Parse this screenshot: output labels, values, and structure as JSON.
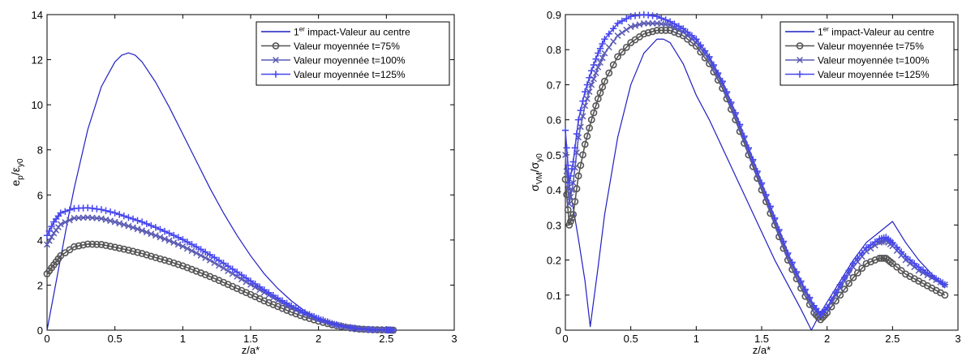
{
  "chart_data": [
    {
      "type": "line",
      "xlabel": "z/a*",
      "ylabel": {
        "base": "e",
        "sub1": "p",
        "sep": "/ε",
        "sub2": "y0"
      },
      "xlim": [
        0,
        3
      ],
      "ylim": [
        0,
        14
      ],
      "xticks": [
        0,
        0.5,
        1,
        1.5,
        2,
        2.5,
        3
      ],
      "xtick_labels": [
        "0",
        "0.5",
        "1",
        "1.5",
        "2",
        "2.5",
        "3"
      ],
      "yticks": [
        0,
        2,
        4,
        6,
        8,
        10,
        12,
        14
      ],
      "ytick_labels": [
        "0",
        "2",
        "4",
        "6",
        "8",
        "10",
        "12",
        "14"
      ],
      "grid": false,
      "legend_position": "top-right",
      "legend": [
        {
          "pre": "1",
          "sup": "er",
          "post": " impact-Valeur au centre"
        },
        {
          "pre": "Valeur moyennée t=75%",
          "sup": "",
          "post": ""
        },
        {
          "pre": "Valeur moyennée t=100%",
          "sup": "",
          "post": ""
        },
        {
          "pre": "Valeur moyennée t=125%",
          "sup": "",
          "post": ""
        }
      ],
      "series": [
        {
          "color": "#1f1fc4",
          "marker": "none",
          "x": [
            0,
            0.05,
            0.1,
            0.15,
            0.2,
            0.3,
            0.4,
            0.5,
            0.55,
            0.6,
            0.65,
            0.7,
            0.8,
            0.9,
            1.0,
            1.1,
            1.2,
            1.3,
            1.4,
            1.5,
            1.6,
            1.7,
            1.8,
            1.9,
            2.0,
            2.1,
            2.2,
            2.3,
            2.4,
            2.5,
            2.55
          ],
          "y": [
            0,
            1.6,
            3.2,
            4.8,
            6.3,
            8.9,
            10.8,
            11.9,
            12.2,
            12.3,
            12.2,
            11.9,
            11.0,
            9.9,
            8.7,
            7.5,
            6.3,
            5.2,
            4.2,
            3.3,
            2.5,
            1.85,
            1.3,
            0.85,
            0.5,
            0.27,
            0.12,
            0.04,
            0.01,
            0,
            0
          ]
        },
        {
          "color": "#555555",
          "marker": "circle",
          "x": [
            0,
            0.05,
            0.1,
            0.2,
            0.3,
            0.4,
            0.5,
            0.6,
            0.7,
            0.8,
            0.9,
            1.0,
            1.1,
            1.2,
            1.3,
            1.4,
            1.5,
            1.6,
            1.7,
            1.8,
            1.9,
            2.0,
            2.1,
            2.2,
            2.3,
            2.4,
            2.5,
            2.55
          ],
          "y": [
            2.5,
            2.9,
            3.3,
            3.7,
            3.82,
            3.8,
            3.68,
            3.55,
            3.4,
            3.22,
            3.05,
            2.85,
            2.62,
            2.38,
            2.12,
            1.85,
            1.58,
            1.3,
            1.05,
            0.8,
            0.58,
            0.4,
            0.24,
            0.12,
            0.05,
            0.02,
            0.01,
            0
          ]
        },
        {
          "color": "#5a5ab4",
          "marker": "x",
          "x": [
            0,
            0.05,
            0.1,
            0.2,
            0.3,
            0.4,
            0.5,
            0.6,
            0.7,
            0.8,
            0.9,
            1.0,
            1.1,
            1.2,
            1.3,
            1.4,
            1.5,
            1.6,
            1.7,
            1.8,
            1.9,
            2.0,
            2.1,
            2.2,
            2.3,
            2.4,
            2.5,
            2.55
          ],
          "y": [
            3.8,
            4.3,
            4.7,
            4.97,
            5.0,
            4.95,
            4.8,
            4.62,
            4.42,
            4.2,
            3.97,
            3.72,
            3.42,
            3.1,
            2.75,
            2.38,
            2.02,
            1.67,
            1.32,
            1.0,
            0.72,
            0.48,
            0.28,
            0.14,
            0.06,
            0.02,
            0.01,
            0
          ]
        },
        {
          "color": "#4646ee",
          "marker": "plus",
          "x": [
            0,
            0.05,
            0.1,
            0.2,
            0.3,
            0.4,
            0.5,
            0.6,
            0.7,
            0.8,
            0.9,
            1.0,
            1.1,
            1.2,
            1.3,
            1.4,
            1.5,
            1.6,
            1.7,
            1.8,
            1.9,
            2.0,
            2.1,
            2.2,
            2.3,
            2.4,
            2.5,
            2.55
          ],
          "y": [
            4.2,
            4.8,
            5.2,
            5.4,
            5.43,
            5.35,
            5.2,
            5.0,
            4.8,
            4.56,
            4.3,
            4.02,
            3.7,
            3.35,
            2.97,
            2.58,
            2.18,
            1.79,
            1.42,
            1.08,
            0.78,
            0.52,
            0.3,
            0.15,
            0.06,
            0.02,
            0.01,
            0
          ]
        }
      ]
    },
    {
      "type": "line",
      "xlabel": "z/a*",
      "ylabel": {
        "base": "σ",
        "sub1": "VM",
        "sep": "/σ",
        "sub2": "y0"
      },
      "xlim": [
        0,
        3
      ],
      "ylim": [
        0,
        0.9
      ],
      "xticks": [
        0,
        0.5,
        1,
        1.5,
        2,
        2.5,
        3
      ],
      "xtick_labels": [
        "0",
        "0.5",
        "1",
        "1.5",
        "2",
        "2.5",
        "3"
      ],
      "yticks": [
        0,
        0.1,
        0.2,
        0.3,
        0.4,
        0.5,
        0.6,
        0.7,
        0.8,
        0.9
      ],
      "ytick_labels": [
        "0",
        "0.1",
        "0.2",
        "0.3",
        "0.4",
        "0.5",
        "0.6",
        "0.7",
        "0.8",
        "0.9"
      ],
      "grid": false,
      "legend_position": "top-right",
      "legend": [
        {
          "pre": "1",
          "sup": "er",
          "post": " impact-Valeur au centre"
        },
        {
          "pre": "Valeur moyennée t=75%",
          "sup": "",
          "post": ""
        },
        {
          "pre": "Valeur moyennée t=100%",
          "sup": "",
          "post": ""
        },
        {
          "pre": "Valeur moyennée t=125%",
          "sup": "",
          "post": ""
        }
      ],
      "series": [
        {
          "color": "#1f1fc4",
          "marker": "none",
          "x": [
            0,
            0.05,
            0.1,
            0.15,
            0.19,
            0.25,
            0.3,
            0.4,
            0.5,
            0.6,
            0.7,
            0.75,
            0.8,
            0.9,
            1.0,
            1.1,
            1.2,
            1.3,
            1.4,
            1.5,
            1.6,
            1.7,
            1.8,
            1.88,
            1.95,
            2.0,
            2.1,
            2.2,
            2.3,
            2.4,
            2.5,
            2.6,
            2.7,
            2.8,
            2.9
          ],
          "y": [
            0.48,
            0.37,
            0.26,
            0.14,
            0.01,
            0.18,
            0.33,
            0.55,
            0.7,
            0.79,
            0.83,
            0.83,
            0.82,
            0.76,
            0.67,
            0.6,
            0.52,
            0.44,
            0.36,
            0.28,
            0.2,
            0.13,
            0.06,
            0.0,
            0.05,
            0.08,
            0.14,
            0.2,
            0.25,
            0.28,
            0.31,
            0.25,
            0.2,
            0.16,
            0.12
          ]
        },
        {
          "color": "#555555",
          "marker": "circle",
          "x": [
            0,
            0.03,
            0.06,
            0.1,
            0.15,
            0.2,
            0.25,
            0.3,
            0.4,
            0.5,
            0.6,
            0.7,
            0.8,
            0.9,
            1.0,
            1.1,
            1.2,
            1.3,
            1.4,
            1.5,
            1.6,
            1.7,
            1.8,
            1.9,
            1.95,
            2.0,
            2.1,
            2.2,
            2.3,
            2.4,
            2.45,
            2.5,
            2.6,
            2.7,
            2.8,
            2.9
          ],
          "y": [
            0.43,
            0.3,
            0.33,
            0.44,
            0.53,
            0.6,
            0.66,
            0.71,
            0.78,
            0.82,
            0.845,
            0.855,
            0.855,
            0.84,
            0.81,
            0.76,
            0.69,
            0.6,
            0.5,
            0.4,
            0.3,
            0.2,
            0.12,
            0.05,
            0.03,
            0.05,
            0.1,
            0.15,
            0.19,
            0.205,
            0.205,
            0.19,
            0.16,
            0.14,
            0.12,
            0.1
          ]
        },
        {
          "color": "#5a5ab4",
          "marker": "x",
          "x": [
            0,
            0.03,
            0.06,
            0.1,
            0.15,
            0.2,
            0.25,
            0.3,
            0.4,
            0.5,
            0.6,
            0.7,
            0.8,
            0.9,
            1.0,
            1.1,
            1.2,
            1.3,
            1.4,
            1.5,
            1.6,
            1.7,
            1.8,
            1.9,
            1.95,
            2.0,
            2.1,
            2.2,
            2.3,
            2.4,
            2.45,
            2.5,
            2.6,
            2.7,
            2.8,
            2.9
          ],
          "y": [
            0.5,
            0.36,
            0.42,
            0.55,
            0.64,
            0.7,
            0.75,
            0.79,
            0.84,
            0.865,
            0.875,
            0.875,
            0.87,
            0.85,
            0.82,
            0.77,
            0.7,
            0.61,
            0.51,
            0.41,
            0.31,
            0.21,
            0.13,
            0.06,
            0.04,
            0.06,
            0.12,
            0.18,
            0.225,
            0.25,
            0.255,
            0.24,
            0.2,
            0.17,
            0.15,
            0.13
          ]
        },
        {
          "color": "#4646ee",
          "marker": "plus",
          "x": [
            0,
            0.03,
            0.06,
            0.1,
            0.15,
            0.2,
            0.25,
            0.3,
            0.4,
            0.5,
            0.6,
            0.7,
            0.8,
            0.9,
            1.0,
            1.1,
            1.2,
            1.3,
            1.4,
            1.5,
            1.6,
            1.7,
            1.8,
            1.9,
            1.95,
            2.0,
            2.1,
            2.2,
            2.3,
            2.4,
            2.45,
            2.5,
            2.6,
            2.7,
            2.8,
            2.9
          ],
          "y": [
            0.57,
            0.42,
            0.48,
            0.6,
            0.68,
            0.74,
            0.79,
            0.83,
            0.875,
            0.895,
            0.9,
            0.895,
            0.88,
            0.86,
            0.83,
            0.78,
            0.71,
            0.62,
            0.52,
            0.42,
            0.32,
            0.22,
            0.14,
            0.07,
            0.045,
            0.065,
            0.13,
            0.19,
            0.235,
            0.26,
            0.265,
            0.25,
            0.21,
            0.18,
            0.155,
            0.13
          ]
        }
      ]
    }
  ]
}
